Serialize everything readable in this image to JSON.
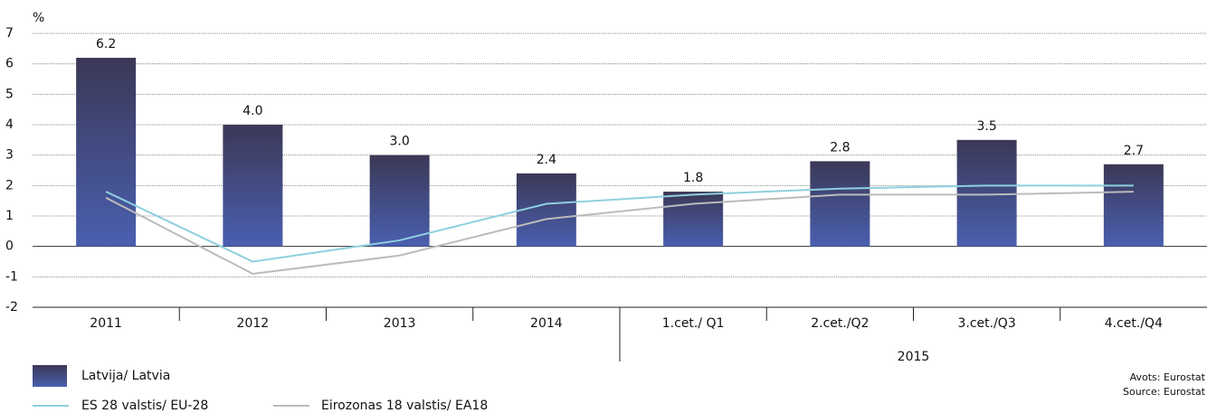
{
  "chart_data": {
    "type": "bar",
    "y_label": "%",
    "categories": [
      "2011",
      "2012",
      "2013",
      "2014",
      "1.cet./ Q1",
      "2.cet./Q2",
      "3.cet./Q3",
      "4.cet./Q4"
    ],
    "category_groups": [
      {
        "label": "2015",
        "from": 4,
        "to": 7
      }
    ],
    "series": [
      {
        "name": "Latvija/ Latvia",
        "type": "bar",
        "color": "#4a5fb0",
        "values": [
          6.2,
          4.0,
          3.0,
          2.4,
          1.8,
          2.8,
          3.5,
          2.7
        ],
        "value_labels": [
          "6.2",
          "4.0",
          "3.0",
          "2.4",
          "1.8",
          "2.8",
          "3.5",
          "2.7"
        ]
      },
      {
        "name": "ES 28 valstis/ EU-28",
        "type": "line",
        "color": "#8ecfe0",
        "values": [
          1.8,
          -0.5,
          0.2,
          1.4,
          1.7,
          1.9,
          2.0,
          2.0
        ]
      },
      {
        "name": "Eirozonas 18 valstis/ EA18",
        "type": "line",
        "color": "#bbbbbb",
        "values": [
          1.6,
          -0.9,
          -0.3,
          0.9,
          1.4,
          1.7,
          1.7,
          1.8
        ]
      }
    ],
    "ylim": [
      -2,
      7
    ],
    "yticks": [
      -2,
      -1,
      0,
      1,
      2,
      3,
      4,
      5,
      6,
      7
    ],
    "grid": true,
    "source": [
      "Avots: Eurostat",
      "Source: Eurostat"
    ]
  }
}
